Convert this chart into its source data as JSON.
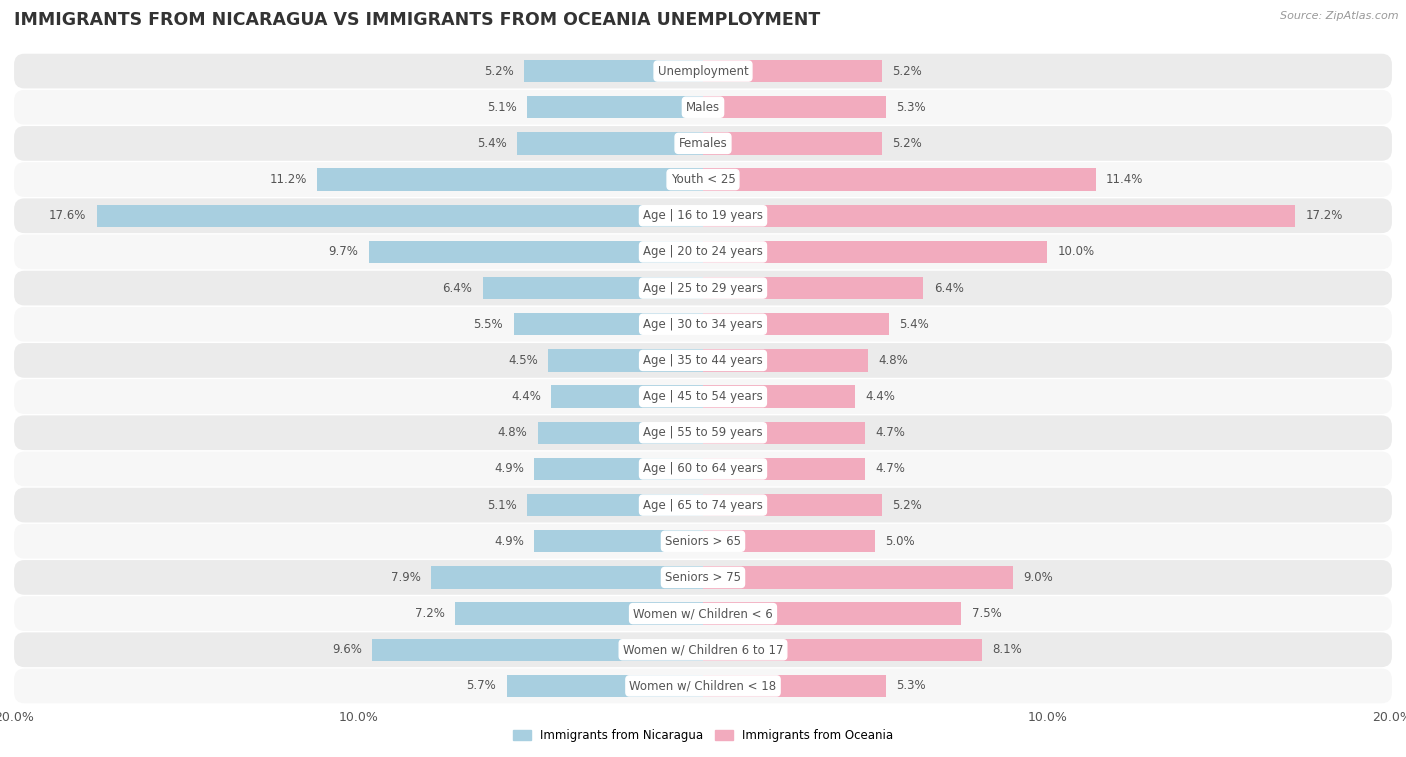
{
  "title": "IMMIGRANTS FROM NICARAGUA VS IMMIGRANTS FROM OCEANIA UNEMPLOYMENT",
  "source": "Source: ZipAtlas.com",
  "categories": [
    "Unemployment",
    "Males",
    "Females",
    "Youth < 25",
    "Age | 16 to 19 years",
    "Age | 20 to 24 years",
    "Age | 25 to 29 years",
    "Age | 30 to 34 years",
    "Age | 35 to 44 years",
    "Age | 45 to 54 years",
    "Age | 55 to 59 years",
    "Age | 60 to 64 years",
    "Age | 65 to 74 years",
    "Seniors > 65",
    "Seniors > 75",
    "Women w/ Children < 6",
    "Women w/ Children 6 to 17",
    "Women w/ Children < 18"
  ],
  "nicaragua_values": [
    5.2,
    5.1,
    5.4,
    11.2,
    17.6,
    9.7,
    6.4,
    5.5,
    4.5,
    4.4,
    4.8,
    4.9,
    5.1,
    4.9,
    7.9,
    7.2,
    9.6,
    5.7
  ],
  "oceania_values": [
    5.2,
    5.3,
    5.2,
    11.4,
    17.2,
    10.0,
    6.4,
    5.4,
    4.8,
    4.4,
    4.7,
    4.7,
    5.2,
    5.0,
    9.0,
    7.5,
    8.1,
    5.3
  ],
  "nicaragua_color": "#a8cfe0",
  "oceania_color": "#f2abbe",
  "nicaragua_label": "Immigrants from Nicaragua",
  "oceania_label": "Immigrants from Oceania",
  "xlim": 20.0,
  "bar_height": 0.62,
  "row_bg_light": "#ebebeb",
  "row_bg_dark": "#f7f7f7",
  "title_fontsize": 12.5,
  "label_fontsize": 8.5,
  "value_fontsize": 8.5,
  "tick_fontsize": 9,
  "bg_color": "#ffffff"
}
